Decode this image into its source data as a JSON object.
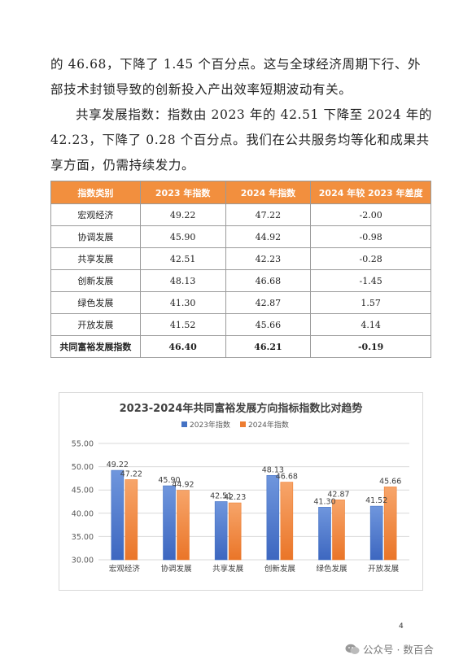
{
  "paragraphs": {
    "p1": "的 46.68，下降了 1.45 个百分点。这与全球经济周期下行、外部技术封锁导致的创新投入产出效率短期波动有关。",
    "p2": "共享发展指数：指数由 2023 年的 42.51 下降至 2024 年的 42.23，下降了 0.28 个百分点。我们在公共服务均等化和成果共享方面，仍需持续发力。"
  },
  "table": {
    "headers": [
      "指数类别",
      "2023 年指数",
      "2024 年指数",
      "2024 年较 2023 年差度"
    ],
    "rows": [
      {
        "name": "宏观经济",
        "v2023": "49.22",
        "v2024": "47.22",
        "diff": "-2.00"
      },
      {
        "name": "协调发展",
        "v2023": "45.90",
        "v2024": "44.92",
        "diff": "-0.98"
      },
      {
        "name": "共享发展",
        "v2023": "42.51",
        "v2024": "42.23",
        "diff": "-0.28"
      },
      {
        "name": "创新发展",
        "v2023": "48.13",
        "v2024": "46.68",
        "diff": "-1.45"
      },
      {
        "name": "绿色发展",
        "v2023": "41.30",
        "v2024": "42.87",
        "diff": "1.57"
      },
      {
        "name": "开放发展",
        "v2023": "41.52",
        "v2024": "45.66",
        "diff": "4.14"
      },
      {
        "name": "共同富裕发展指数",
        "v2023": "46.40",
        "v2024": "46.21",
        "diff": "-0.19"
      }
    ]
  },
  "chart_data": {
    "type": "bar",
    "title": "2023-2024年共同富裕发展方向指标指数比对趋势",
    "categories": [
      "宏观经济",
      "协调发展",
      "共享发展",
      "创新发展",
      "绿色发展",
      "开放发展"
    ],
    "series": [
      {
        "name": "2023年指数",
        "values": [
          49.22,
          45.9,
          42.51,
          48.13,
          41.3,
          41.52
        ],
        "color": "#4472c4",
        "labels": [
          "49.22",
          "45.90",
          "42.51",
          "48.13",
          "41.30",
          "41.52"
        ]
      },
      {
        "name": "2024年指数",
        "values": [
          47.22,
          44.92,
          42.23,
          46.68,
          42.87,
          45.66
        ],
        "color": "#ed7d31",
        "labels": [
          "47.22",
          "44.92",
          "42.23",
          "46.68",
          "42.87",
          "45.66"
        ]
      }
    ],
    "ylim": [
      30,
      55
    ],
    "yticks": [
      "30.00",
      "35.00",
      "40.00",
      "45.00",
      "50.00",
      "55.00"
    ],
    "grid": true,
    "legend_position": "top"
  },
  "page_number": "4",
  "watermark": "公众号 · 数百合"
}
